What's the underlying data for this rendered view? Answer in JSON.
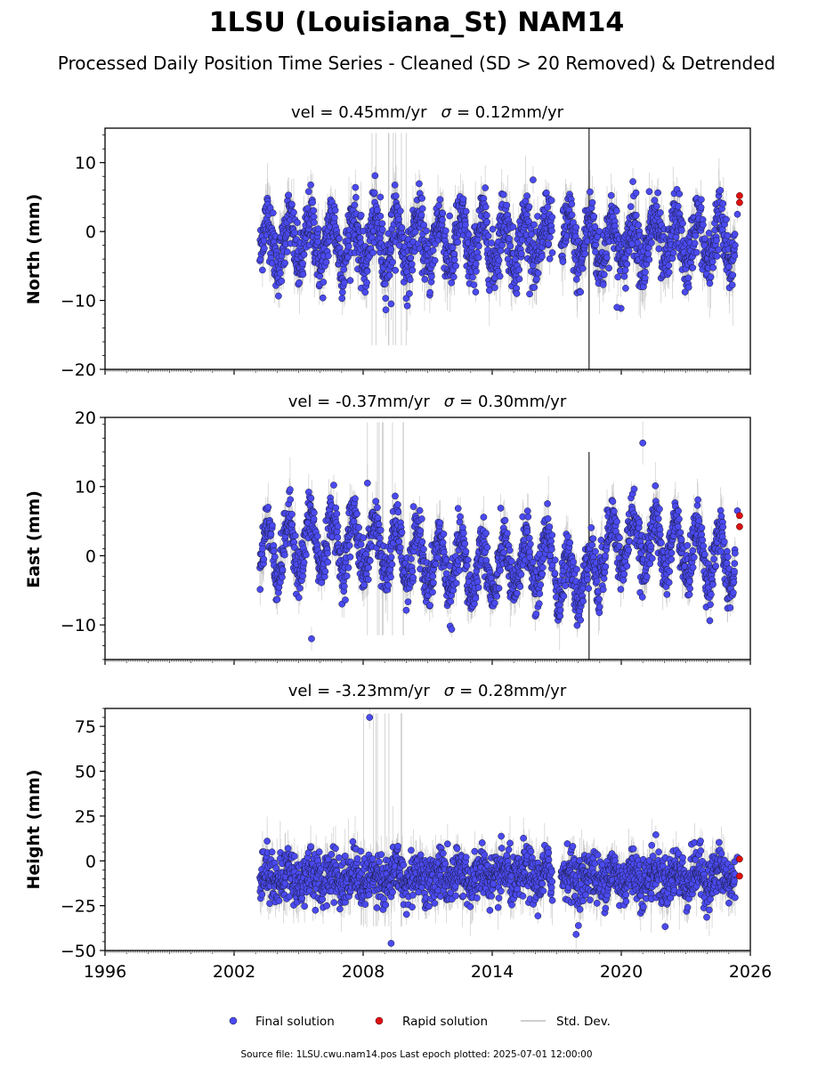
{
  "figure": {
    "title": "1LSU (Louisiana_St) NAM14",
    "subtitle": "Processed Daily Position Time Series - Cleaned (SD > 20 Removed) & Detrended",
    "source_note": "Source file: 1LSU.cwu.nam14.pos  Last epoch plotted: 2025-07-01 12:00:00"
  },
  "legend": {
    "final": "Final solution",
    "rapid": "Rapid solution",
    "std": "Std. Dev."
  },
  "colors": {
    "final": "#4a4af0",
    "final_edge": "#1a1a3a",
    "rapid": "#dd1111",
    "std": "#b4b4b4",
    "std_dark": "#555555"
  },
  "chart_data": [
    {
      "type": "scatter",
      "title": "vel = 0.45mm/yr   σ = 0.12mm/yr",
      "title_vel": "vel = 0.45mm/yr",
      "title_sigma": "= 0.12mm/yr",
      "ylabel": "North (mm)",
      "xlim": [
        1996,
        2026
      ],
      "ylim": [
        -20,
        15
      ],
      "yticks": [
        -20,
        -10,
        0,
        10
      ],
      "ytick_labels": [
        "−20",
        "−10",
        "0",
        "10"
      ],
      "grid": false,
      "final_range": [
        2003.2,
        2025.3
      ],
      "final_gap": [
        2016.8,
        2017.2
      ],
      "seasonal_amplitude": 3.5,
      "scatter_sd": 2.2,
      "outliers": [
        [
          2009.3,
          -10.5
        ],
        [
          2021.3,
          5.8
        ],
        [
          2019.8,
          -11
        ],
        [
          2008.8,
          5.0
        ],
        [
          2015.9,
          7.5
        ]
      ],
      "rapid": [
        [
          2025.5,
          5.2
        ],
        [
          2025.5,
          4.2
        ]
      ],
      "final_end": [
        [
          2025.4,
          2.5
        ]
      ],
      "dark_spike": {
        "x": 2018.5,
        "y_from": -20,
        "y_to": 15
      }
    },
    {
      "type": "scatter",
      "title": "vel = -0.37mm/yr   σ = 0.30mm/yr",
      "title_vel": "vel = -0.37mm/yr",
      "title_sigma": "= 0.30mm/yr",
      "ylabel": "East (mm)",
      "xlim": [
        1996,
        2026
      ],
      "ylim": [
        -15,
        20
      ],
      "yticks": [
        -10,
        0,
        10,
        20
      ],
      "ytick_labels": [
        "−10",
        "0",
        "10",
        "20"
      ],
      "grid": false,
      "final_range": [
        2003.2,
        2025.3
      ],
      "final_gap": [
        2016.8,
        2016.9
      ],
      "seasonal_amplitude": 4.0,
      "scatter_sd": 1.8,
      "outliers": [
        [
          2005.6,
          -12
        ],
        [
          2021.0,
          16.3
        ],
        [
          2008.2,
          10.5
        ]
      ],
      "rapid": [
        [
          2025.5,
          5.8
        ],
        [
          2025.5,
          4.2
        ]
      ],
      "final_end": [
        [
          2025.4,
          6.5
        ]
      ],
      "dark_spike": {
        "x": 2018.5,
        "y_from": -15,
        "y_to": 15
      }
    },
    {
      "type": "scatter",
      "title": "vel = -3.23mm/yr   σ = 0.28mm/yr",
      "title_vel": "vel = -3.23mm/yr",
      "title_sigma": "= 0.28mm/yr",
      "ylabel": "Height (mm)",
      "xlim": [
        1996,
        2026
      ],
      "ylim": [
        -50,
        85
      ],
      "yticks": [
        -50,
        -25,
        0,
        25,
        50,
        75
      ],
      "ytick_labels": [
        "−50",
        "−25",
        "0",
        "25",
        "50",
        "75"
      ],
      "xticks": [
        1996,
        2002,
        2008,
        2014,
        2020,
        2026
      ],
      "xtick_labels": [
        "1996",
        "2002",
        "2008",
        "2014",
        "2020",
        "2026"
      ],
      "grid": false,
      "final_range": [
        2003.2,
        2025.3
      ],
      "final_gap": [
        2016.8,
        2017.2
      ],
      "seasonal_amplitude": 4.0,
      "scatter_sd": 7.0,
      "outliers": [
        [
          2008.3,
          80
        ],
        [
          2009.3,
          -46
        ],
        [
          2017.9,
          -41
        ]
      ],
      "rapid": [
        [
          2025.5,
          1.0
        ],
        [
          2025.5,
          -8.5
        ]
      ],
      "final_end": [
        [
          2025.4,
          2.0
        ]
      ],
      "dark_spike": null
    }
  ]
}
